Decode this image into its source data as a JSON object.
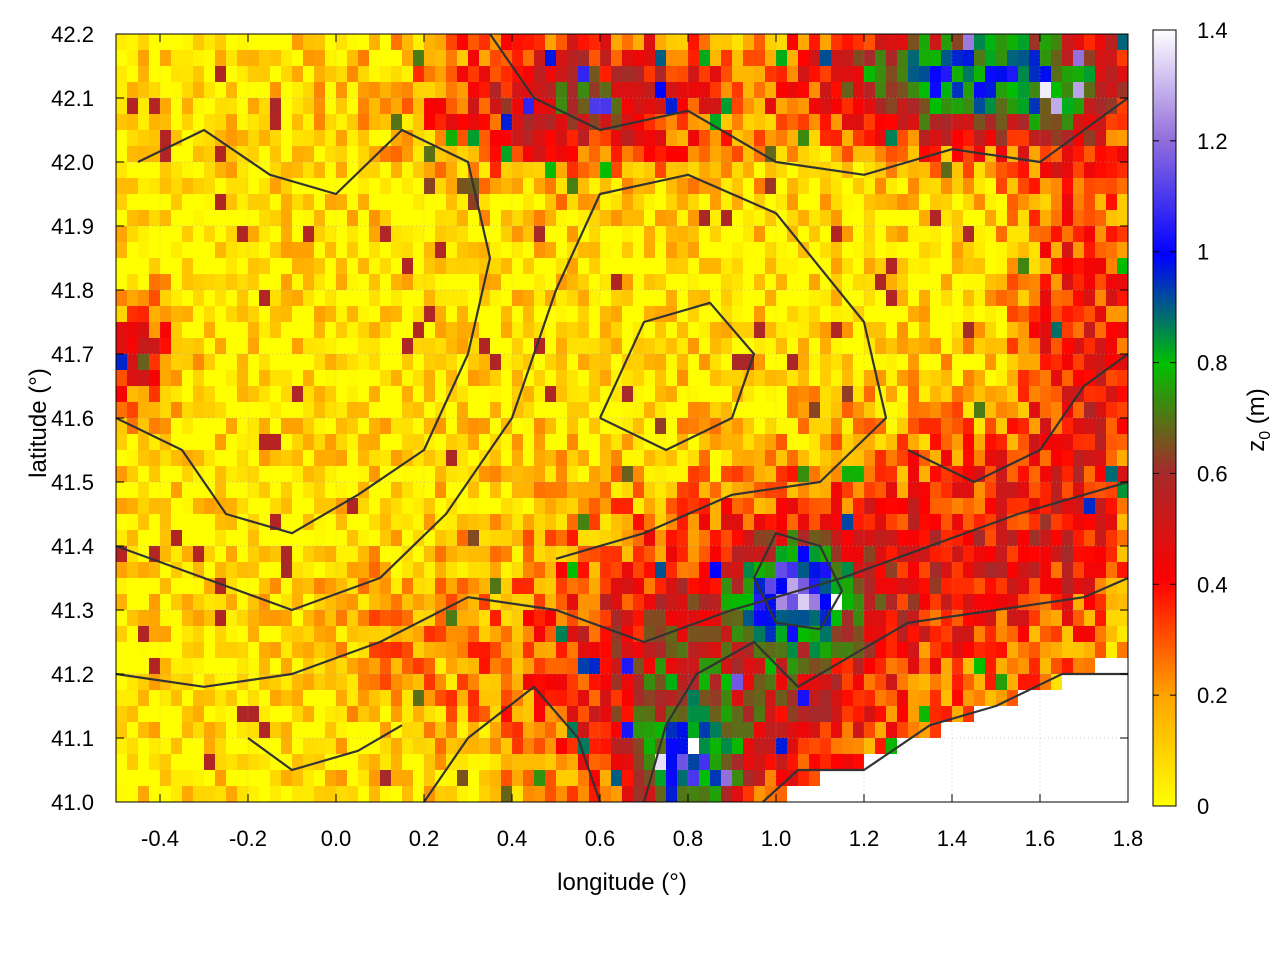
{
  "chart_data": {
    "type": "heatmap",
    "xlabel": "longitude (°)",
    "ylabel": "latitude (°)",
    "colorbar_label": "z",
    "colorbar_label_sub": "0",
    "colorbar_label_unit": " (m)",
    "xlim": [
      -0.5,
      1.8
    ],
    "ylim": [
      41.0,
      42.2
    ],
    "zlim": [
      0,
      1.4
    ],
    "x_ticks": [
      "-0.4",
      "-0.2",
      "0.0",
      "0.2",
      "0.4",
      "0.6",
      "0.8",
      "1.0",
      "1.2",
      "1.4",
      "1.6",
      "1.8"
    ],
    "y_ticks": [
      "41.0",
      "41.1",
      "41.2",
      "41.3",
      "41.4",
      "41.5",
      "41.6",
      "41.7",
      "41.8",
      "41.9",
      "42.0",
      "42.1",
      "42.2"
    ],
    "z_ticks": [
      "0",
      "0.2",
      "0.4",
      "0.6",
      "0.8",
      "1",
      "1.2",
      "1.4"
    ],
    "grid": true,
    "colormap": [
      "#ffff00",
      "#ffa500",
      "#ff0000",
      "#a52a2a",
      "#00c000",
      "#0000ff",
      "#9370db",
      "#ffffff"
    ],
    "contour_color": "#333333"
  }
}
